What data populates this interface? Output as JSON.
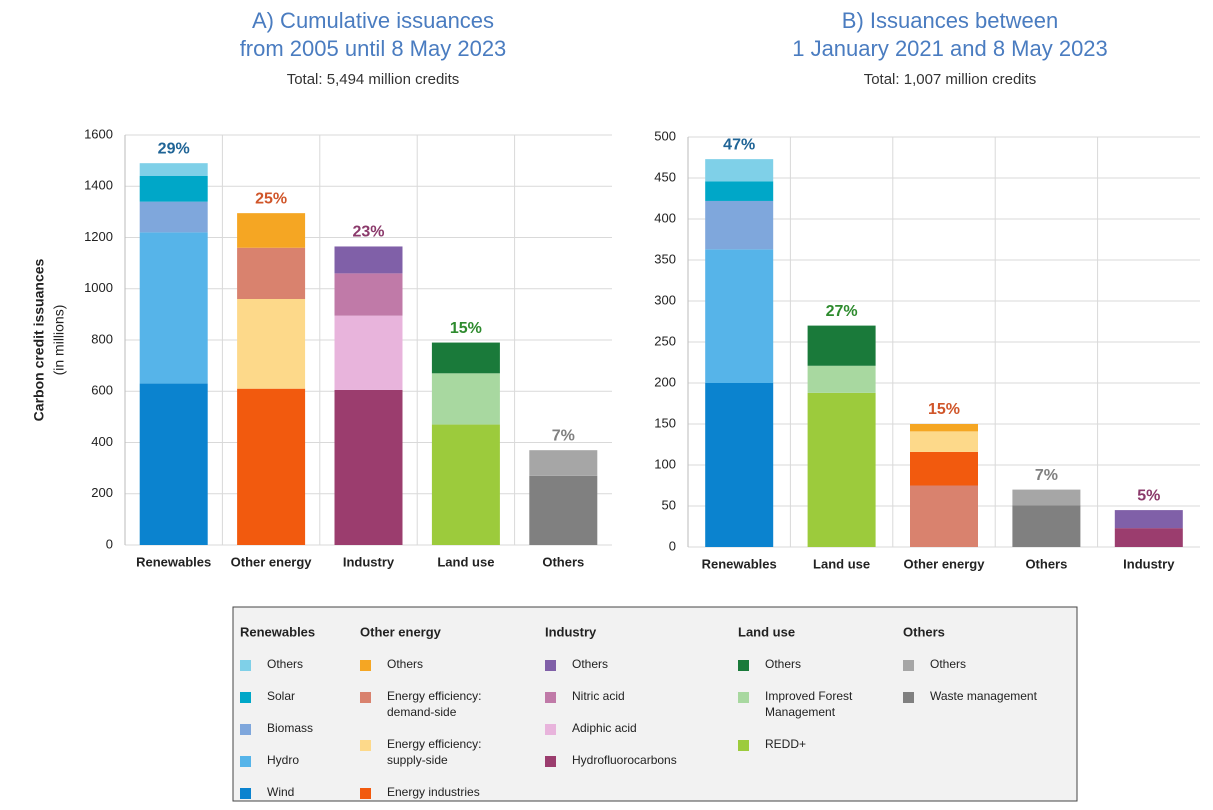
{
  "chart_data": [
    {
      "type": "bar",
      "stacked": true,
      "title": [
        "A) Cumulative issuances",
        "from 2005 until 8 May 2023"
      ],
      "subtitle": "Total: 5,494 million credits",
      "ylabel": "Carbon credit issuances",
      "ylabel_sub": "(in millions)",
      "ylim": [
        0,
        1600
      ],
      "yticks": [
        0,
        200,
        400,
        600,
        800,
        1000,
        1200,
        1400,
        1600
      ],
      "grid": true,
      "bars": [
        {
          "category": "Renewables",
          "share_label": "29%",
          "label_color": "#1f6496",
          "segments": [
            {
              "color": "#0b83cf",
              "value": 630
            },
            {
              "color": "#56b4e9",
              "value": 590
            },
            {
              "color": "#7fa7dc",
              "value": 120
            },
            {
              "color": "#00a7c8",
              "value": 100
            },
            {
              "color": "#7fd0e8",
              "value": 50
            }
          ]
        },
        {
          "category": "Other energy",
          "share_label": "25%",
          "label_color": "#d0562a",
          "segments": [
            {
              "color": "#f25a0e",
              "value": 610
            },
            {
              "color": "#fdd98a",
              "value": 350
            },
            {
              "color": "#d9826e",
              "value": 200
            },
            {
              "color": "#f5a623",
              "value": 135
            }
          ]
        },
        {
          "category": "Industry",
          "share_label": "23%",
          "label_color": "#8b3a6b",
          "segments": [
            {
              "color": "#9b3d6e",
              "value": 605
            },
            {
              "color": "#e8b4dc",
              "value": 290
            },
            {
              "color": "#c07aa8",
              "value": 165
            },
            {
              "color": "#8060a8",
              "value": 105
            }
          ]
        },
        {
          "category": "Land use",
          "share_label": "15%",
          "label_color": "#2e8b2e",
          "segments": [
            {
              "color": "#9ccb3c",
              "value": 470
            },
            {
              "color": "#a8d8a0",
              "value": 200
            },
            {
              "color": "#1a7a3a",
              "value": 120
            }
          ]
        },
        {
          "category": "Others",
          "share_label": "7%",
          "label_color": "#808080",
          "segments": [
            {
              "color": "#808080",
              "value": 270
            },
            {
              "color": "#a6a6a6",
              "value": 100
            }
          ]
        }
      ]
    },
    {
      "type": "bar",
      "stacked": true,
      "title": [
        "B) Issuances between",
        "1 January 2021 and 8 May 2023"
      ],
      "subtitle": "Total: 1,007 million credits",
      "ylim": [
        0,
        500
      ],
      "yticks": [
        0,
        50,
        100,
        150,
        200,
        250,
        300,
        350,
        400,
        450,
        500
      ],
      "grid": true,
      "bars": [
        {
          "category": "Renewables",
          "share_label": "47%",
          "label_color": "#1f6496",
          "segments": [
            {
              "color": "#0b83cf",
              "value": 200
            },
            {
              "color": "#56b4e9",
              "value": 163
            },
            {
              "color": "#7fa7dc",
              "value": 59
            },
            {
              "color": "#00a7c8",
              "value": 24
            },
            {
              "color": "#7fd0e8",
              "value": 27
            }
          ]
        },
        {
          "category": "Land use",
          "share_label": "27%",
          "label_color": "#2e8b2e",
          "segments": [
            {
              "color": "#9ccb3c",
              "value": 188
            },
            {
              "color": "#a8d8a0",
              "value": 33
            },
            {
              "color": "#1a7a3a",
              "value": 49
            }
          ]
        },
        {
          "category": "Other energy",
          "share_label": "15%",
          "label_color": "#d0562a",
          "segments": [
            {
              "color": "#d9826e",
              "value": 75
            },
            {
              "color": "#f25a0e",
              "value": 41
            },
            {
              "color": "#fdd98a",
              "value": 25
            },
            {
              "color": "#f5a623",
              "value": 9
            }
          ]
        },
        {
          "category": "Others",
          "share_label": "7%",
          "label_color": "#808080",
          "segments": [
            {
              "color": "#808080",
              "value": 51
            },
            {
              "color": "#a6a6a6",
              "value": 19
            }
          ]
        },
        {
          "category": "Industry",
          "share_label": "5%",
          "label_color": "#8b3a6b",
          "segments": [
            {
              "color": "#9b3d6e",
              "value": 23
            },
            {
              "color": "#8060a8",
              "value": 22
            }
          ]
        }
      ]
    }
  ],
  "legend": {
    "groups": [
      {
        "name": "Renewables",
        "items": [
          {
            "label": [
              "Others"
            ],
            "color": "#7fd0e8"
          },
          {
            "label": [
              "Solar"
            ],
            "color": "#00a7c8"
          },
          {
            "label": [
              "Biomass"
            ],
            "color": "#7fa7dc"
          },
          {
            "label": [
              "Hydro"
            ],
            "color": "#56b4e9"
          },
          {
            "label": [
              "Wind"
            ],
            "color": "#0b83cf"
          }
        ]
      },
      {
        "name": "Other energy",
        "items": [
          {
            "label": [
              "Others"
            ],
            "color": "#f5a623"
          },
          {
            "label": [
              "Energy efficiency:",
              "demand-side"
            ],
            "color": "#d9826e"
          },
          {
            "label": [
              "Energy efficiency:",
              "supply-side"
            ],
            "color": "#fdd98a"
          },
          {
            "label": [
              "Energy industries"
            ],
            "color": "#f25a0e"
          }
        ]
      },
      {
        "name": "Industry",
        "items": [
          {
            "label": [
              "Others"
            ],
            "color": "#8060a8"
          },
          {
            "label": [
              "Nitric acid"
            ],
            "color": "#c07aa8"
          },
          {
            "label": [
              "Adiphic acid"
            ],
            "color": "#e8b4dc"
          },
          {
            "label": [
              "Hydrofluorocarbons"
            ],
            "color": "#9b3d6e"
          }
        ]
      },
      {
        "name": "Land use",
        "items": [
          {
            "label": [
              "Others"
            ],
            "color": "#1a7a3a"
          },
          {
            "label": [
              "Improved Forest",
              "Management"
            ],
            "color": "#a8d8a0"
          },
          {
            "label": [
              "REDD+"
            ],
            "color": "#9ccb3c"
          }
        ]
      },
      {
        "name": "Others",
        "items": [
          {
            "label": [
              "Others"
            ],
            "color": "#a6a6a6"
          },
          {
            "label": [
              "Waste management"
            ],
            "color": "#808080"
          }
        ]
      }
    ]
  }
}
